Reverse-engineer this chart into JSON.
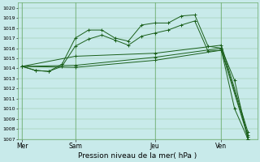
{
  "title": "",
  "xlabel": "Pression niveau de la mer( hPa )",
  "ylim": [
    1007,
    1020.5
  ],
  "yticks": [
    1007,
    1008,
    1009,
    1010,
    1011,
    1012,
    1013,
    1014,
    1015,
    1016,
    1017,
    1018,
    1019,
    1020
  ],
  "bg_color": "#c8eaea",
  "grid_color": "#6aaa6a",
  "line_color": "#1a5f1a",
  "day_labels": [
    "Mer",
    "Sam",
    "Jeu",
    "Ven"
  ],
  "day_positions": [
    0,
    4,
    10,
    15
  ],
  "xlim": [
    -0.3,
    17.7
  ],
  "lines": [
    {
      "x": [
        0,
        1,
        2,
        3,
        4,
        5,
        6,
        7,
        8,
        9,
        10,
        11,
        12,
        13,
        14,
        15,
        16,
        17
      ],
      "y": [
        1014.2,
        1013.8,
        1013.7,
        1014.4,
        1017.0,
        1017.8,
        1017.8,
        1017.0,
        1016.7,
        1018.3,
        1018.5,
        1018.5,
        1019.2,
        1019.3,
        1016.2,
        1016.0,
        1012.8,
        1007.0
      ]
    },
    {
      "x": [
        0,
        1,
        2,
        3,
        4,
        5,
        6,
        7,
        8,
        9,
        10,
        11,
        12,
        13,
        14,
        15,
        16,
        17
      ],
      "y": [
        1014.2,
        1013.8,
        1013.7,
        1014.2,
        1016.2,
        1016.9,
        1017.3,
        1016.8,
        1016.3,
        1017.2,
        1017.5,
        1017.8,
        1018.3,
        1018.7,
        1015.7,
        1015.8,
        1010.0,
        1007.0
      ]
    },
    {
      "x": [
        0,
        4,
        10,
        15,
        17
      ],
      "y": [
        1014.2,
        1014.1,
        1014.8,
        1015.8,
        1007.2
      ]
    },
    {
      "x": [
        0,
        4,
        10,
        15,
        17
      ],
      "y": [
        1014.2,
        1014.3,
        1015.1,
        1016.0,
        1007.4
      ]
    },
    {
      "x": [
        0,
        4,
        10,
        15,
        17
      ],
      "y": [
        1014.2,
        1015.2,
        1015.5,
        1016.3,
        1007.7
      ]
    }
  ],
  "figsize": [
    3.2,
    2.0
  ],
  "dpi": 100
}
